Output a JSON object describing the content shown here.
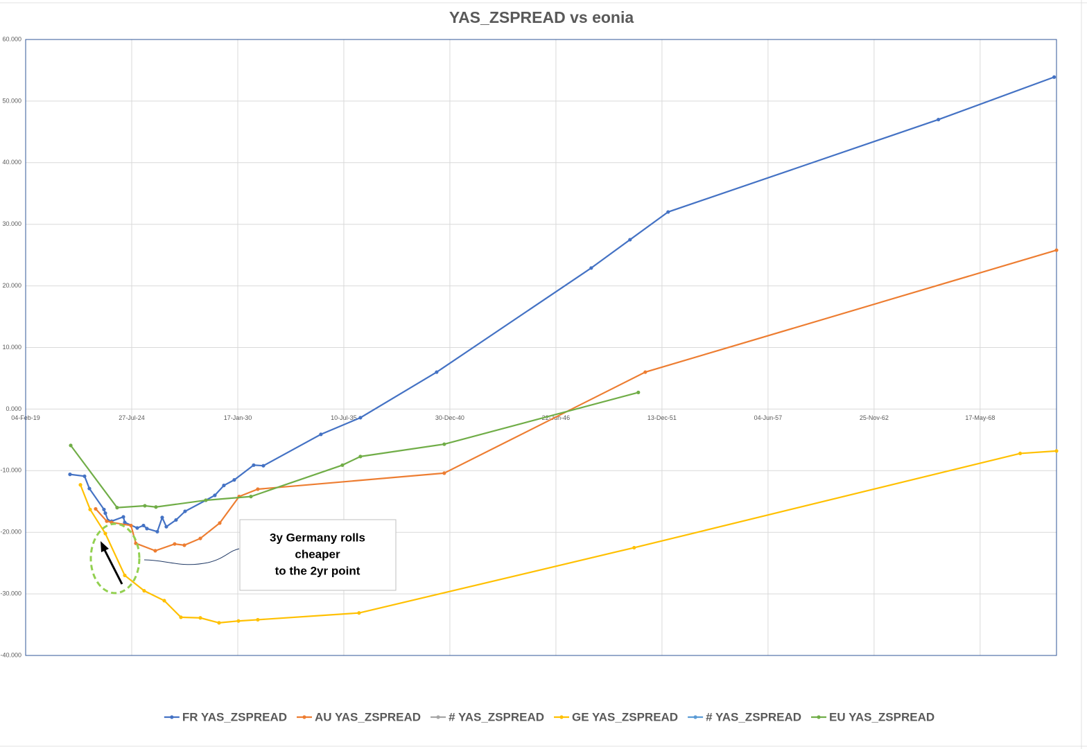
{
  "chart_data": {
    "type": "line",
    "title": "YAS_ZSPREAD vs eonia",
    "xlim": [
      43500,
      62940
    ],
    "xticks": [
      {
        "value": 43500,
        "label": "04-Feb-19"
      },
      {
        "value": 45500,
        "label": "27-Jul-24"
      },
      {
        "value": 47500,
        "label": "17-Jan-30"
      },
      {
        "value": 49500,
        "label": "10-Jul-35"
      },
      {
        "value": 51500,
        "label": "30-Dec-40"
      },
      {
        "value": 53500,
        "label": "22-Jun-46"
      },
      {
        "value": 55500,
        "label": "13-Dec-51"
      },
      {
        "value": 57500,
        "label": "04-Jun-57"
      },
      {
        "value": 59500,
        "label": "25-Nov-62"
      },
      {
        "value": 61500,
        "label": "17-May-68"
      }
    ],
    "ylim": [
      -40,
      60
    ],
    "yticks": [
      {
        "value": -40,
        "label": "-40.000"
      },
      {
        "value": -30,
        "label": "-30.000"
      },
      {
        "value": -20,
        "label": "-20.000"
      },
      {
        "value": -10,
        "label": "-10.000"
      },
      {
        "value": 0,
        "label": "0.000"
      },
      {
        "value": 10,
        "label": "10.000"
      },
      {
        "value": 20,
        "label": "20.000"
      },
      {
        "value": 30,
        "label": "30.000"
      },
      {
        "value": 40,
        "label": "40.000"
      },
      {
        "value": 50,
        "label": "50.000"
      },
      {
        "value": 60,
        "label": "60.000"
      }
    ],
    "grid": true,
    "legend": "bottom",
    "series": [
      {
        "name": "FR YAS_ZSPREAD",
        "color": "#4472c4",
        "x": [
          44336,
          44611,
          44702,
          44977,
          45003,
          45055,
          45121,
          45343,
          45369,
          45604,
          45722,
          45787,
          45983,
          46075,
          46153,
          46336,
          46506,
          46898,
          47068,
          47238,
          47434,
          47800,
          47983,
          49068,
          49813,
          51251,
          54165,
          54897,
          55616,
          60713,
          62896
        ],
        "values": [
          -10.6,
          -10.9,
          -12.9,
          -16.3,
          -16.9,
          -18.1,
          -18.2,
          -17.5,
          -18.4,
          -19.3,
          -18.9,
          -19.4,
          -19.9,
          -17.6,
          -19.1,
          -18.0,
          -16.6,
          -14.8,
          -14.0,
          -12.4,
          -11.5,
          -9.1,
          -9.2,
          -4.1,
          -1.4,
          6.0,
          22.9,
          27.5,
          32.0,
          47.0,
          53.9
        ]
      },
      {
        "name": "AU YAS_ZSPREAD",
        "color": "#ed7d31",
        "x": [
          44820,
          45029,
          45121,
          45487,
          45578,
          45944,
          46310,
          46493,
          46794,
          47160,
          47526,
          47878,
          51394,
          55185,
          62940
        ],
        "values": [
          -16.2,
          -18.2,
          -18.4,
          -18.9,
          -21.8,
          -23.0,
          -21.9,
          -22.1,
          -21.0,
          -18.5,
          -14.2,
          -13.0,
          -10.4,
          6.0,
          25.8
        ]
      },
      {
        "name": "# YAS_ZSPREAD",
        "color": "#a5a5a5",
        "x": [],
        "values": []
      },
      {
        "name": "GE YAS_ZSPREAD",
        "color": "#ffc000",
        "x": [
          44533,
          44716,
          45003,
          45369,
          45735,
          46114,
          46428,
          46794,
          47147,
          47513,
          47878,
          49787,
          54975,
          62255,
          62940
        ],
        "values": [
          -12.3,
          -16.3,
          -20.2,
          -27.0,
          -29.5,
          -31.1,
          -33.8,
          -33.9,
          -34.7,
          -34.4,
          -34.2,
          -33.1,
          -22.5,
          -7.2,
          -6.8
        ]
      },
      {
        "name": "# YAS_ZSPREAD",
        "color": "#5b9bd5",
        "x": [],
        "values": []
      },
      {
        "name": "EU YAS_ZSPREAD",
        "color": "#70ad47",
        "x": [
          44350,
          45225,
          45748,
          45957,
          46898,
          47748,
          49473,
          49813,
          51394,
          55054
        ],
        "values": [
          -5.9,
          -16.0,
          -15.7,
          -15.9,
          -14.8,
          -14.2,
          -9.1,
          -7.7,
          -5.7,
          2.7
        ]
      }
    ],
    "annotation": [
      "3y Germany rolls",
      "cheaper",
      "to the 2yr point"
    ]
  }
}
